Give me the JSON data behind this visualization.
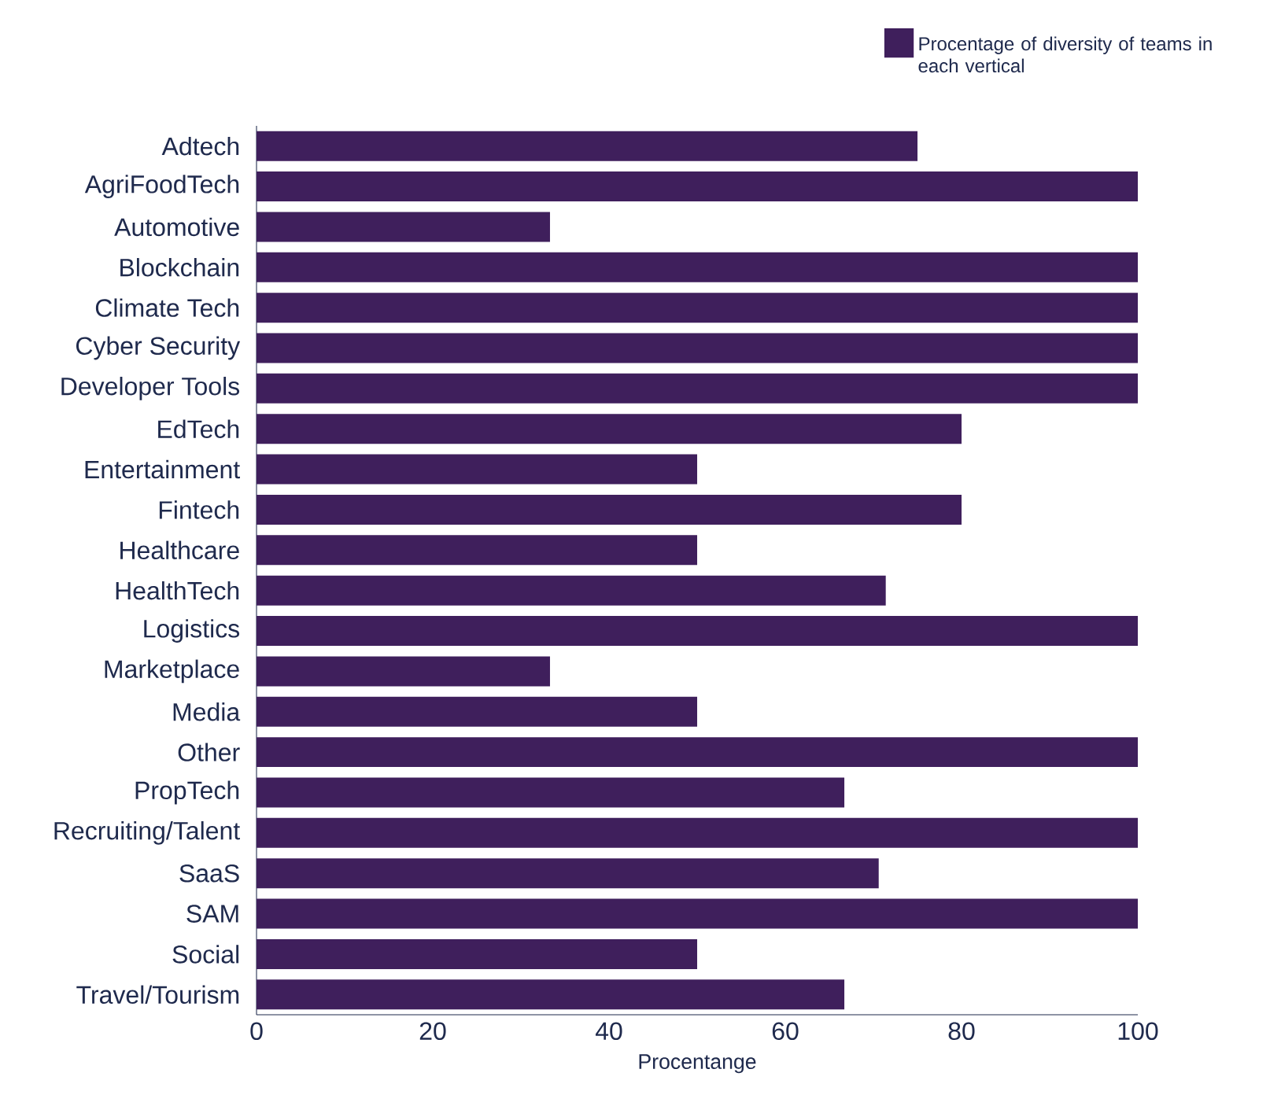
{
  "chart_data": {
    "type": "bar",
    "orientation": "horizontal",
    "xlabel": "Procentange",
    "categories": [
      "Adtech",
      "AgriFoodTech",
      "Automotive",
      "Blockchain",
      "Climate Tech",
      "Cyber Security",
      "Developer Tools",
      "EdTech",
      "Entertainment",
      "Fintech",
      "Healthcare",
      "HealthTech",
      "Logistics",
      "Marketplace",
      "Media",
      "Other",
      "PropTech",
      "Recruiting/Talent",
      "SaaS",
      "SAM",
      "Social",
      "Travel/Tourism"
    ],
    "series": [
      {
        "name": "Procentage of diversity of teams in each vertical",
        "color": "#3f1f5c",
        "values": [
          75,
          100,
          33.3,
          100,
          100,
          100,
          100,
          80,
          50,
          80,
          50,
          71.4,
          100,
          33.3,
          50,
          100,
          66.7,
          100,
          70.6,
          100,
          50,
          66.7
        ]
      }
    ],
    "xlim": [
      0,
      100
    ],
    "xticks": [
      0,
      20,
      40,
      60,
      80,
      100
    ],
    "legend": "top right",
    "grid": false
  }
}
